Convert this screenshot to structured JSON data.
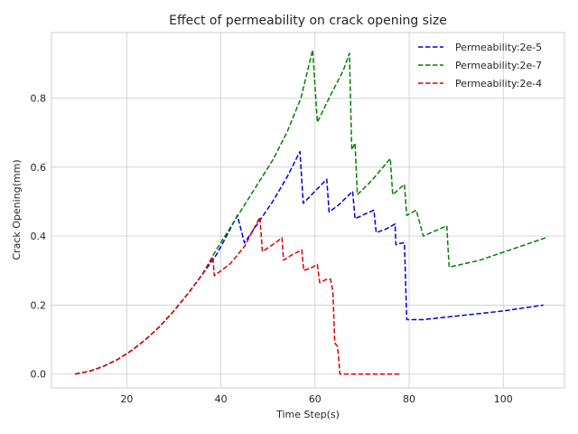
{
  "chart_data": {
    "type": "line",
    "title": "Effect of permeability on crack opening size",
    "xlabel": "Time Step(s)",
    "ylabel": "Crack Opening(mm)",
    "xlim": [
      4,
      113
    ],
    "ylim": [
      -0.04,
      0.99
    ],
    "xticks": [
      20,
      40,
      60,
      80,
      100
    ],
    "yticks": [
      0.0,
      0.2,
      0.4,
      0.6,
      0.8
    ],
    "xtick_labels": [
      "20",
      "40",
      "60",
      "80",
      "100"
    ],
    "ytick_labels": [
      "0.0",
      "0.2",
      "0.4",
      "0.6",
      "0.8"
    ],
    "grid": true,
    "legend_position": "top-right",
    "series": [
      {
        "name": "Permeability:2e-5",
        "color": "#0000dd",
        "x": [
          9,
          12,
          15,
          18,
          21,
          24,
          27,
          30,
          33,
          36,
          39,
          41,
          43.5,
          45,
          48,
          51,
          54,
          56.8,
          57.5,
          60,
          62.5,
          63,
          65,
          68,
          68.5,
          70,
          72.5,
          73,
          75,
          77,
          77.2,
          78.5,
          79,
          79.5,
          83,
          90,
          100,
          108.5
        ],
        "y": [
          0,
          0.008,
          0.022,
          0.042,
          0.068,
          0.1,
          0.138,
          0.183,
          0.233,
          0.288,
          0.345,
          0.395,
          0.46,
          0.38,
          0.44,
          0.5,
          0.57,
          0.645,
          0.495,
          0.53,
          0.565,
          0.47,
          0.49,
          0.53,
          0.45,
          0.46,
          0.475,
          0.41,
          0.42,
          0.435,
          0.375,
          0.38,
          0.38,
          0.158,
          0.158,
          0.168,
          0.183,
          0.2
        ]
      },
      {
        "name": "Permeability:2e-7",
        "color": "#008000",
        "x": [
          9,
          12,
          15,
          18,
          21,
          24,
          27,
          30,
          33,
          36,
          39,
          42,
          45,
          48,
          51,
          54,
          57,
          59.5,
          60.5,
          63,
          66,
          67.3,
          67.8,
          68.5,
          69,
          72,
          76,
          76.5,
          79,
          79.5,
          81.5,
          83,
          88,
          88.5,
          95,
          109
        ],
        "y": [
          0,
          0.008,
          0.022,
          0.042,
          0.068,
          0.1,
          0.138,
          0.183,
          0.233,
          0.288,
          0.36,
          0.425,
          0.49,
          0.555,
          0.62,
          0.7,
          0.8,
          0.94,
          0.73,
          0.8,
          0.88,
          0.93,
          0.65,
          0.67,
          0.52,
          0.56,
          0.625,
          0.52,
          0.55,
          0.46,
          0.475,
          0.4,
          0.43,
          0.31,
          0.33,
          0.395
        ]
      },
      {
        "name": "Permeability:2e-4",
        "color": "#dd0000",
        "x": [
          9,
          12,
          15,
          18,
          21,
          24,
          27,
          30,
          33,
          36,
          38.3,
          38.6,
          42,
          45,
          48.3,
          48.8,
          51,
          53,
          53.3,
          55,
          57.2,
          57.6,
          59.5,
          60.5,
          61,
          62.5,
          63.3,
          63.8,
          64.2,
          64.8,
          65.3,
          70,
          78
        ],
        "y": [
          0,
          0.008,
          0.022,
          0.042,
          0.068,
          0.1,
          0.138,
          0.183,
          0.233,
          0.288,
          0.34,
          0.285,
          0.32,
          0.37,
          0.455,
          0.355,
          0.375,
          0.395,
          0.33,
          0.345,
          0.36,
          0.3,
          0.31,
          0.318,
          0.265,
          0.275,
          0.275,
          0.24,
          0.09,
          0.08,
          0,
          0,
          0
        ]
      }
    ]
  }
}
